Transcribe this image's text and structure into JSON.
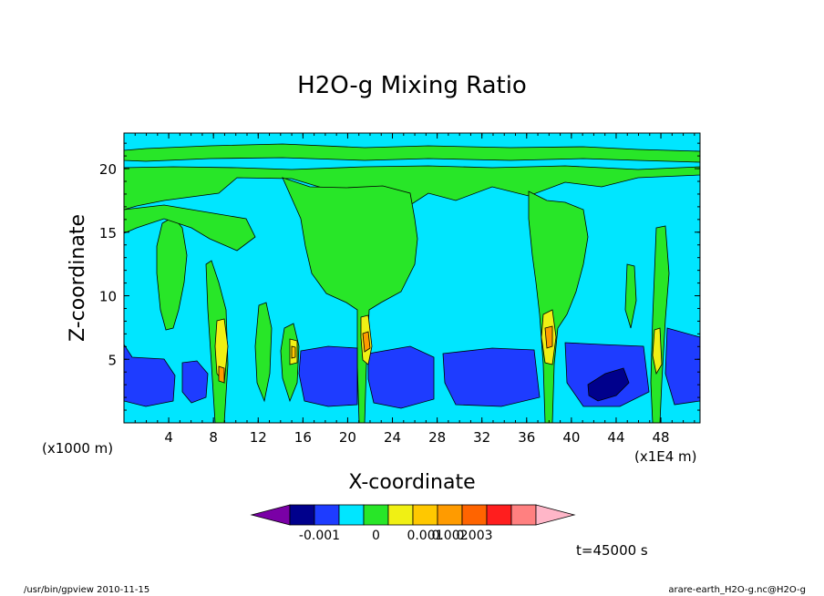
{
  "chart_data": {
    "type": "heatmap",
    "title": "H2O-g Mixing Ratio",
    "xlabel": "X-coordinate",
    "ylabel": "Z-coordinate",
    "x_unit": "(x1000 m)",
    "x_unit2": "(x1E4 m)",
    "xlim": [
      0,
      51.5
    ],
    "ylim": [
      0,
      22.8
    ],
    "x_ticks": [
      "4",
      "8",
      "12",
      "16",
      "20",
      "24",
      "28",
      "32",
      "36",
      "40",
      "44",
      "48"
    ],
    "y_ticks": [
      "5",
      "10",
      "15",
      "20"
    ],
    "time_label": "t=45000 s",
    "colorbar": {
      "colors": [
        "#7a00a6",
        "#00008c",
        "#1e3cff",
        "#00e6ff",
        "#28e628",
        "#f0f014",
        "#ffc800",
        "#ff9b00",
        "#ff6400",
        "#ff1e1e",
        "#ff8080",
        "#ffb6c8"
      ],
      "tick_labels": [
        "-0.001",
        "0",
        "0.001",
        "0.002",
        "0.003"
      ]
    },
    "fields": {
      "background": "#00e6ff",
      "low_dry": "#1e3cff",
      "very_dry": "#00008c",
      "moist": "#28e628",
      "wet_1": "#f0f014",
      "wet_2": "#ffc800",
      "wet_3": "#ff9b00"
    }
  },
  "footer": {
    "left": "/usr/bin/gpview   2010-11-15",
    "right": "arare-earth_H2O-g.nc@H2O-g"
  }
}
